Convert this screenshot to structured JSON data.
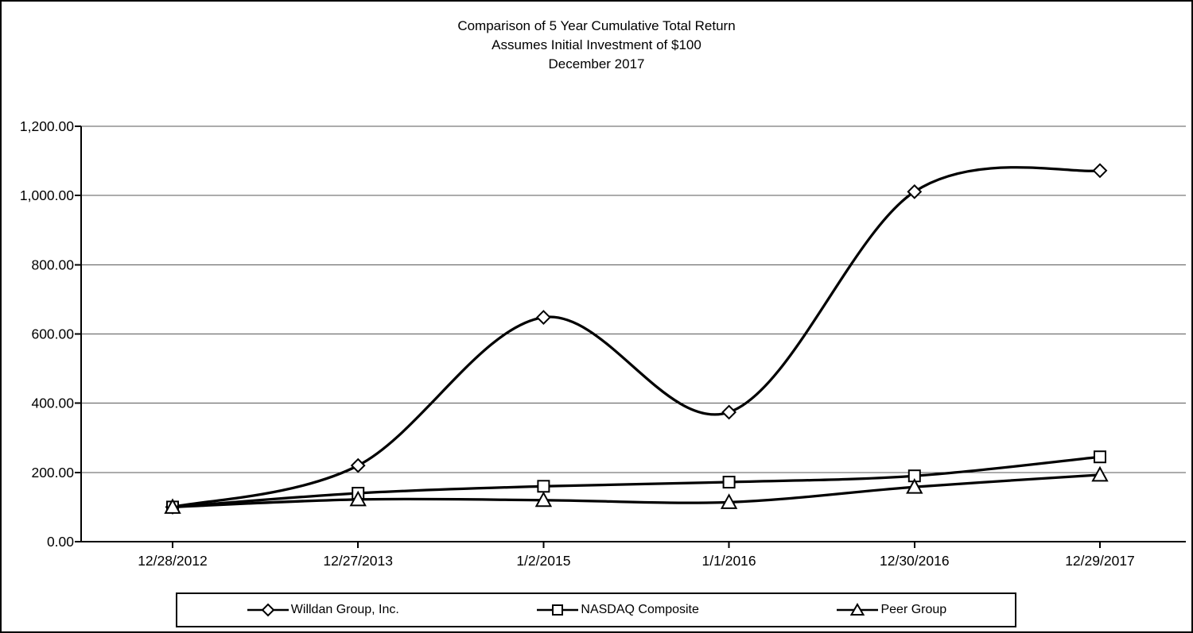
{
  "chart_data": {
    "type": "line",
    "title_lines": [
      "Comparison of 5 Year Cumulative Total Return",
      "Assumes Initial Investment of $100",
      "December 2017"
    ],
    "categories": [
      "12/28/2012",
      "12/27/2013",
      "1/2/2015",
      "1/1/2016",
      "12/30/2016",
      "12/29/2017"
    ],
    "series": [
      {
        "name": "Willdan Group, Inc.",
        "marker": "diamond",
        "values": [
          100,
          220,
          648,
          374,
          1011,
          1072
        ]
      },
      {
        "name": "NASDAQ Composite",
        "marker": "square",
        "values": [
          100,
          140,
          160,
          172,
          190,
          245
        ]
      },
      {
        "name": "Peer Group",
        "marker": "triangle",
        "values": [
          100,
          122,
          120,
          114,
          158,
          193
        ]
      }
    ],
    "xlabel": "",
    "ylabel": "",
    "ylim": [
      0,
      1200
    ],
    "ytick_step": 200,
    "ytick_labels": [
      "0.00",
      "200.00",
      "400.00",
      "600.00",
      "800.00",
      "1,000.00",
      "1,200.00"
    ],
    "grid": "horizontal",
    "legend_position": "bottom",
    "line_smoothing": "spline",
    "colors": {
      "line": "#000000",
      "marker_fill": "#ffffff",
      "grid": "#595959",
      "axis": "#000000",
      "border": "#000000",
      "background": "#ffffff"
    }
  }
}
